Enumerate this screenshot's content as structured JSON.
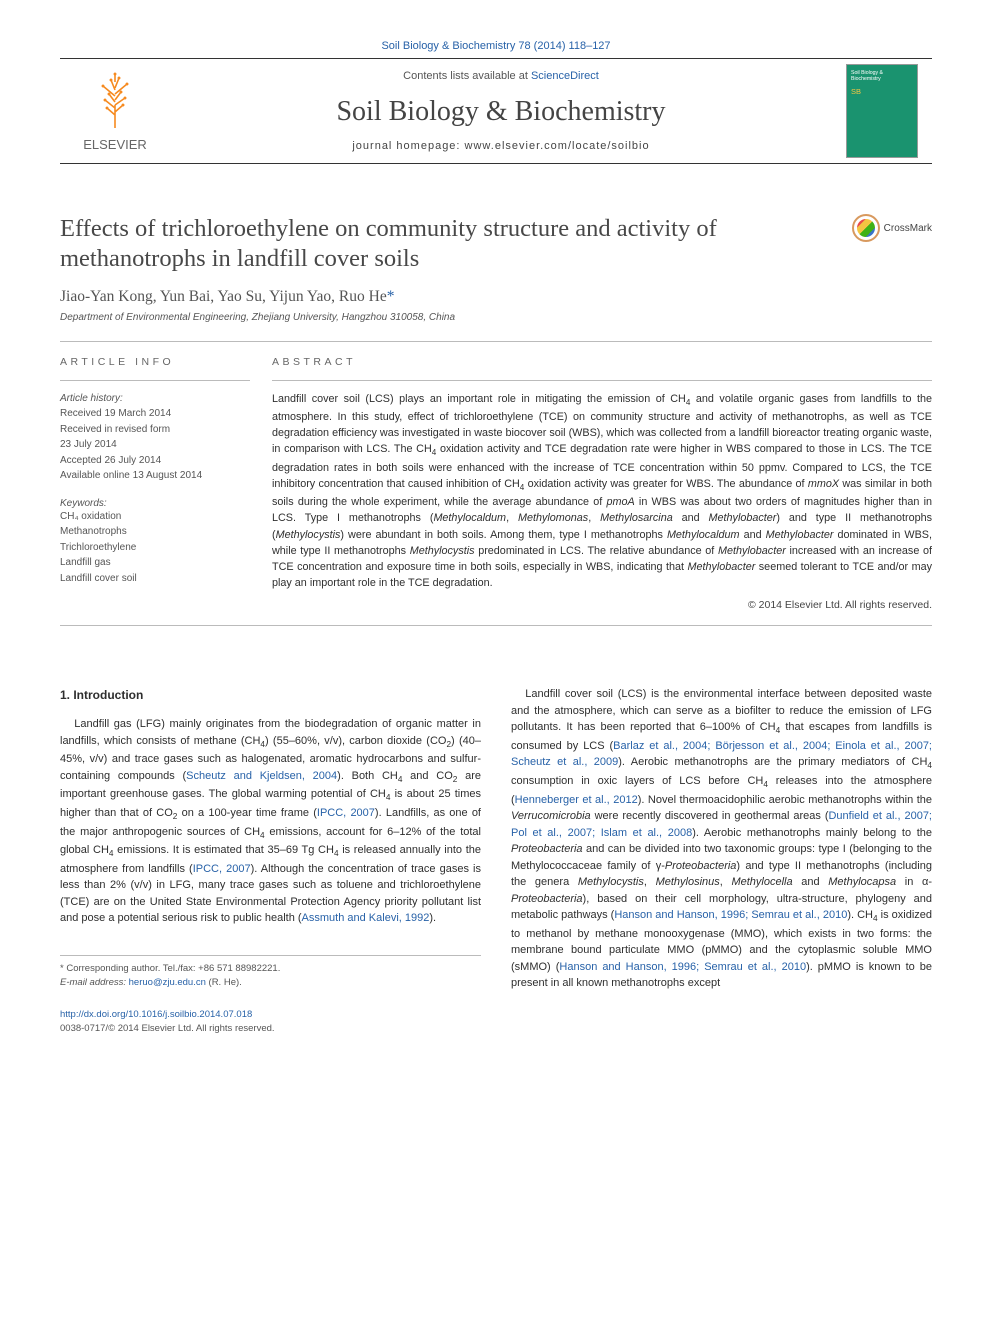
{
  "citation": "Soil Biology & Biochemistry 78 (2014) 118–127",
  "banner": {
    "contents_prefix": "Contents lists available at ",
    "contents_link": "ScienceDirect",
    "journal": "Soil Biology & Biochemistry",
    "homepage_label": "journal homepage: ",
    "homepage_url": "www.elsevier.com/locate/soilbio",
    "publisher": "ELSEVIER",
    "cover_top": "Soil Biology & Biochemistry",
    "cover_mid": "SB"
  },
  "title": "Effects of trichloroethylene on community structure and activity of methanotrophs in landfill cover soils",
  "crossmark": "CrossMark",
  "authors": "Jiao-Yan Kong, Yun Bai, Yao Su, Yijun Yao, Ruo He",
  "corr_mark": "*",
  "affiliation": "Department of Environmental Engineering, Zhejiang University, Hangzhou 310058, China",
  "article_info": {
    "heading": "ARTICLE INFO",
    "history_label": "Article history:",
    "history": [
      "Received 19 March 2014",
      "Received in revised form",
      "23 July 2014",
      "Accepted 26 July 2014",
      "Available online 13 August 2014"
    ],
    "keywords_label": "Keywords:",
    "keywords": [
      "CH₄ oxidation",
      "Methanotrophs",
      "Trichloroethylene",
      "Landfill gas",
      "Landfill cover soil"
    ]
  },
  "abstract": {
    "heading": "ABSTRACT",
    "text_html": "Landfill cover soil (LCS) plays an important role in mitigating the emission of CH<sub>4</sub> and volatile organic gases from landfills to the atmosphere. In this study, effect of trichloroethylene (TCE) on community structure and activity of methanotrophs, as well as TCE degradation efficiency was investigated in waste biocover soil (WBS), which was collected from a landfill bioreactor treating organic waste, in comparison with LCS. The CH<sub>4</sub> oxidation activity and TCE degradation rate were higher in WBS compared to those in LCS. The TCE degradation rates in both soils were enhanced with the increase of TCE concentration within 50 ppmv. Compared to LCS, the TCE inhibitory concentration that caused inhibition of CH<sub>4</sub> oxidation activity was greater for WBS. The abundance of <em>mmoX</em> was similar in both soils during the whole experiment, while the average abundance of <em>pmoA</em> in WBS was about two orders of magnitudes higher than in LCS. Type I methanotrophs (<em>Methylocaldum</em>, <em>Methylomonas</em>, <em>Methylosarcina</em> and <em>Methylobacter</em>) and type II methanotrophs (<em>Methylocystis</em>) were abundant in both soils. Among them, type I methanotrophs <em>Methylocaldum</em> and <em>Methylobacter</em> dominated in WBS, while type II methanotrophs <em>Methylocystis</em> predominated in LCS. The relative abundance of <em>Methylobacter</em> increased with an increase of TCE concentration and exposure time in both soils, especially in WBS, indicating that <em>Methylobacter</em> seemed tolerant to TCE and/or may play an important role in the TCE degradation.",
    "copyright": "© 2014 Elsevier Ltd. All rights reserved."
  },
  "intro": {
    "heading": "1.  Introduction",
    "col1_html": "Landfill gas (LFG) mainly originates from the biodegradation of organic matter in landfills, which consists of methane (CH<sub>4</sub>) (55–60%, v/v), carbon dioxide (CO<sub>2</sub>) (40–45%, v/v) and trace gases such as halogenated, aromatic hydrocarbons and sulfur-containing compounds (<a>Scheutz and Kjeldsen, 2004</a>). Both CH<sub>4</sub> and CO<sub>2</sub> are important greenhouse gases. The global warming potential of CH<sub>4</sub> is about 25 times higher than that of CO<sub>2</sub> on a 100-year time frame (<a>IPCC, 2007</a>). Landfills, as one of the major anthropogenic sources of CH<sub>4</sub> emissions, account for 6–12% of the total global CH<sub>4</sub> emissions. It is estimated that 35–69 Tg CH<sub>4</sub> is released annually into the atmosphere from landfills (<a>IPCC, 2007</a>). Although the concentration of trace gases is less than 2% (v/v) in LFG, many trace gases such as toluene and trichloroethylene (TCE) are on the United State Environmental Protection Agency priority pollutant list and pose a potential serious risk to public health (<a>Assmuth and Kalevi, 1992</a>).",
    "col2_html": "Landfill cover soil (LCS) is the environmental interface between deposited waste and the atmosphere, which can serve as a biofilter to reduce the emission of LFG pollutants. It has been reported that 6–100% of CH<sub>4</sub> that escapes from landfills is consumed by LCS (<a>Barlaz et al., 2004; Börjesson et al., 2004; Einola et al., 2007; Scheutz et al., 2009</a>). Aerobic methanotrophs are the primary mediators of CH<sub>4</sub> consumption in oxic layers of LCS before CH<sub>4</sub> releases into the atmosphere (<a>Henneberger et al., 2012</a>). Novel thermoacidophilic aerobic methanotrophs within the <em>Verrucomicrobia</em> were recently discovered in geothermal areas (<a>Dunfield et al., 2007; Pol et al., 2007; Islam et al., 2008</a>). Aerobic methanotrophs mainly belong to the <em>Proteobacteria</em> and can be divided into two taxonomic groups: type I (belonging to the Methylococcaceae family of γ-<em>Proteobacteria</em>) and type II methanotrophs (including the genera <em>Methylocystis</em>, <em>Methylosinus</em>, <em>Methylocella</em> and <em>Methylocapsa</em> in α-<em>Proteobacteria</em>), based on their cell morphology, ultra-structure, phylogeny and metabolic pathways (<a>Hanson and Hanson, 1996; Semrau et al., 2010</a>). CH<sub>4</sub> is oxidized to methanol by methane monooxygenase (MMO), which exists in two forms: the membrane bound particulate MMO (pMMO) and the cytoplasmic soluble MMO (sMMO) (<a>Hanson and Hanson, 1996; Semrau et al., 2010</a>). pMMO is known to be present in all known methanotrophs except"
  },
  "footer": {
    "corr": "* Corresponding author. Tel./fax: +86 571 88982221.",
    "email_label": "E-mail address:",
    "email": "heruo@zju.edu.cn",
    "email_suffix": "(R. He).",
    "doi": "http://dx.doi.org/10.1016/j.soilbio.2014.07.018",
    "issn_line": "0038-0717/© 2014 Elsevier Ltd. All rights reserved."
  }
}
